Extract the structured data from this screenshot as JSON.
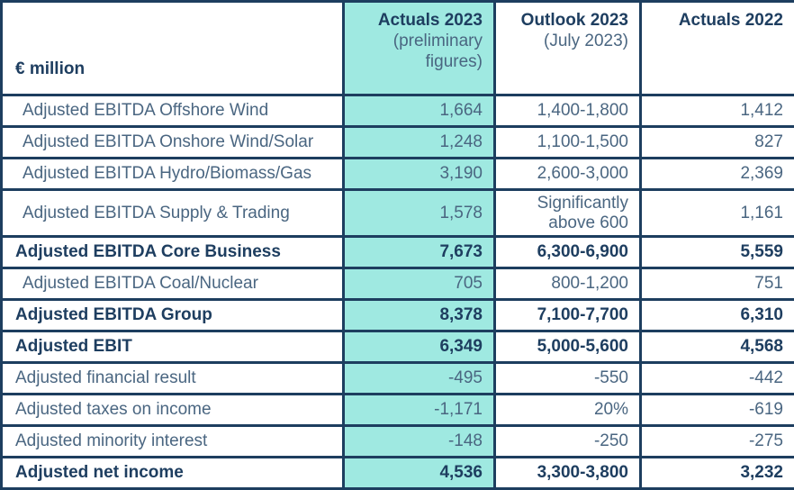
{
  "chart_data": {
    "type": "table",
    "unit_label": "€ million",
    "columns": [
      {
        "label": "Actuals 2023",
        "sublabel": "(preliminary figures)",
        "highlighted": true
      },
      {
        "label": "Outlook 2023",
        "sublabel": "(July 2023)",
        "highlighted": false
      },
      {
        "label": "Actuals 2022",
        "sublabel": "",
        "highlighted": false
      }
    ],
    "rows": [
      {
        "label": "Adjusted EBITDA Offshore Wind",
        "actuals_2023": "1,664",
        "outlook_2023": "1,400-1,800",
        "actuals_2022": "1,412",
        "bold": false,
        "indented": true
      },
      {
        "label": "Adjusted EBITDA Onshore Wind/Solar",
        "actuals_2023": "1,248",
        "outlook_2023": "1,100-1,500",
        "actuals_2022": "827",
        "bold": false,
        "indented": true
      },
      {
        "label": "Adjusted EBITDA Hydro/Biomass/Gas",
        "actuals_2023": "3,190",
        "outlook_2023": "2,600-3,000",
        "actuals_2022": "2,369",
        "bold": false,
        "indented": true
      },
      {
        "label": "Adjusted EBITDA Supply & Trading",
        "actuals_2023": "1,578",
        "outlook_2023": "Significantly above 600",
        "actuals_2022": "1,161",
        "bold": false,
        "indented": true
      },
      {
        "label": "Adjusted EBITDA Core Business",
        "actuals_2023": "7,673",
        "outlook_2023": "6,300-6,900",
        "actuals_2022": "5,559",
        "bold": true,
        "indented": false
      },
      {
        "label": "Adjusted EBITDA Coal/Nuclear",
        "actuals_2023": "705",
        "outlook_2023": "800-1,200",
        "actuals_2022": "751",
        "bold": false,
        "indented": true
      },
      {
        "label": "Adjusted EBITDA Group",
        "actuals_2023": "8,378",
        "outlook_2023": "7,100-7,700",
        "actuals_2022": "6,310",
        "bold": true,
        "indented": false
      },
      {
        "label": "Adjusted EBIT",
        "actuals_2023": "6,349",
        "outlook_2023": "5,000-5,600",
        "actuals_2022": "4,568",
        "bold": true,
        "indented": false
      },
      {
        "label": "Adjusted financial result",
        "actuals_2023": "-495",
        "outlook_2023": "-550",
        "actuals_2022": "-442",
        "bold": false,
        "indented": false
      },
      {
        "label": "Adjusted taxes on income",
        "actuals_2023": "-1,171",
        "outlook_2023": "20%",
        "actuals_2022": "-619",
        "bold": false,
        "indented": false
      },
      {
        "label": "Adjusted minority interest",
        "actuals_2023": "-148",
        "outlook_2023": "-250",
        "actuals_2022": "-275",
        "bold": false,
        "indented": false
      },
      {
        "label": "Adjusted net income",
        "actuals_2023": "4,536",
        "outlook_2023": "3,300-3,800",
        "actuals_2022": "3,232",
        "bold": true,
        "indented": false
      }
    ]
  },
  "colors": {
    "highlight_fill": "#9fe9e1",
    "border": "#1d3e5f",
    "text_bold": "#1e3e60",
    "text_regular": "#4a6681"
  }
}
